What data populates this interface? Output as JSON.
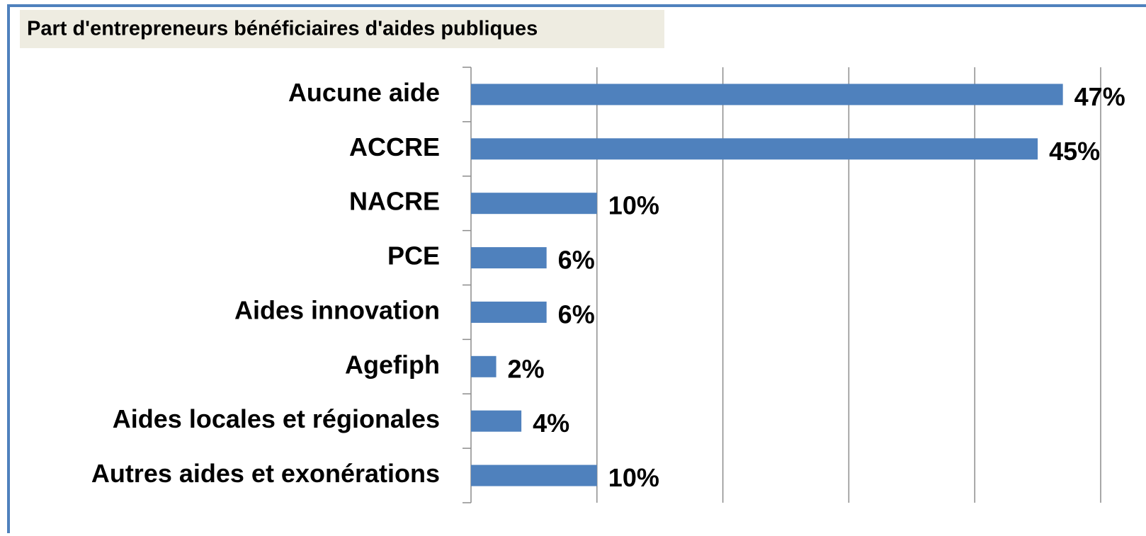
{
  "chart_data": {
    "type": "bar",
    "orientation": "horizontal",
    "title": "Part d'entrepreneurs bénéficiaires d'aides publiques",
    "categories": [
      "Aucune aide",
      "ACCRE",
      "NACRE",
      "PCE",
      "Aides innovation",
      "Agefiph",
      "Aides locales et régionales",
      "Autres aides et exonérations"
    ],
    "values": [
      47,
      45,
      10,
      6,
      6,
      2,
      4,
      10
    ],
    "value_labels": [
      "47%",
      "45%",
      "10%",
      "6%",
      "6%",
      "2%",
      "4%",
      "10%"
    ],
    "color": "#4f81bd",
    "xlim": [
      0,
      50
    ],
    "xticks": [
      0,
      10,
      20,
      30,
      40,
      50
    ],
    "grid": true
  }
}
